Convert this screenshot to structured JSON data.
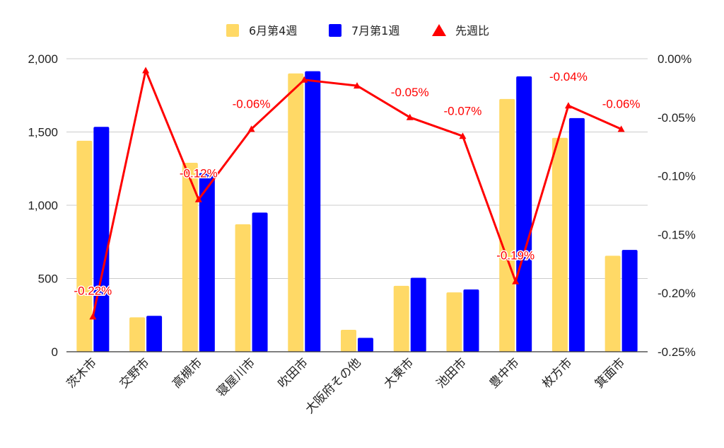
{
  "chart_data": {
    "type": "bar+line",
    "categories": [
      "茨木市",
      "交野市",
      "高槻市",
      "寝屋川市",
      "吹田市",
      "大阪府その他",
      "大東市",
      "池田市",
      "豊中市",
      "枚方市",
      "箕面市"
    ],
    "series": [
      {
        "name": "6月第4週",
        "type": "bar",
        "axis": "left",
        "color": "#FFD966",
        "values": [
          1440,
          235,
          1290,
          870,
          1900,
          150,
          450,
          405,
          1725,
          1460,
          655
        ]
      },
      {
        "name": "7月第1週",
        "type": "bar",
        "axis": "left",
        "color": "#0000FF",
        "values": [
          1535,
          245,
          1220,
          950,
          1915,
          95,
          505,
          425,
          1880,
          1595,
          695
        ]
      },
      {
        "name": "先週比",
        "type": "line",
        "axis": "right",
        "color": "#FF0000",
        "values": [
          -0.22,
          -0.01,
          -0.12,
          -0.06,
          -0.018,
          -0.023,
          -0.05,
          -0.066,
          -0.19,
          -0.04,
          -0.06
        ]
      }
    ],
    "line_data_labels": [
      "-0.22%",
      "",
      "-0.12%",
      "-0.06%",
      "",
      "",
      "-0.05%",
      "-0.07%",
      "-0.19%",
      "-0.04%",
      "-0.06%"
    ],
    "left_axis": {
      "ylim": [
        0,
        2000
      ],
      "ticks": [
        0,
        500,
        1000,
        1500,
        2000
      ],
      "tick_labels": [
        "0",
        "500",
        "1,000",
        "1,500",
        "2,000"
      ]
    },
    "right_axis": {
      "ylim": [
        -0.25,
        0
      ],
      "ticks": [
        0,
        -0.05,
        -0.1,
        -0.15,
        -0.2,
        -0.25
      ],
      "tick_labels": [
        "0.00%",
        "-0.05%",
        "-0.10%",
        "-0.15%",
        "-0.20%",
        "-0.25%"
      ]
    },
    "grid": true,
    "legend_position": "top-center"
  }
}
